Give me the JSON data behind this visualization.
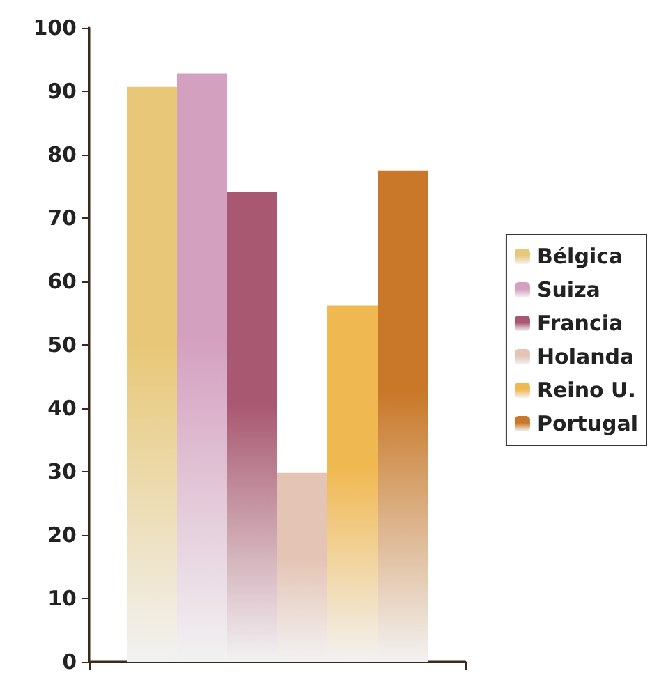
{
  "chart_data": {
    "type": "bar",
    "categories": [
      null
    ],
    "series": [
      {
        "name": "Bélgica",
        "color": "#e8c878",
        "values": [
          90.7
        ]
      },
      {
        "name": "Suiza",
        "color": "#d4a0c0",
        "values": [
          92.8
        ]
      },
      {
        "name": "Francia",
        "color": "#a85870",
        "values": [
          74.1
        ]
      },
      {
        "name": "Holanda",
        "color": "#e4c4b4",
        "values": [
          29.8
        ]
      },
      {
        "name": "Reino U.",
        "color": "#f0b850",
        "values": [
          56.2
        ]
      },
      {
        "name": "Portugal",
        "color": "#c87828",
        "values": [
          77.5
        ]
      }
    ],
    "ylim": [
      0,
      100
    ],
    "yticks": [
      0,
      10,
      20,
      30,
      40,
      50,
      60,
      70,
      80,
      90,
      100
    ],
    "grid": false,
    "legend": "right"
  }
}
